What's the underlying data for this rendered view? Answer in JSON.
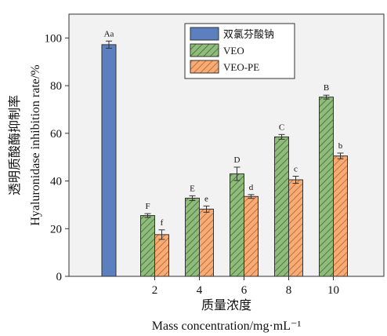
{
  "chart_data": {
    "type": "bar",
    "xlabel_cn": "质量浓度",
    "xlabel_en": "Mass concentration/mg·mL⁻¹",
    "ylabel_cn": "透明质酸酶抑制率",
    "ylabel_en": "Hyaluronidase inhibition rate/%",
    "ylim": [
      0,
      110
    ],
    "yticks": [
      0,
      20,
      40,
      60,
      80,
      100
    ],
    "categories": [
      "",
      "2",
      "4",
      "6",
      "8",
      "10"
    ],
    "series": [
      {
        "name": "双氯芬酸钠",
        "color": "#5b7fbf",
        "pattern": "solid",
        "values": [
          97.2,
          null,
          null,
          null,
          null,
          null
        ],
        "errors": [
          1.5,
          null,
          null,
          null,
          null,
          null
        ],
        "letters": [
          "Aa",
          null,
          null,
          null,
          null,
          null
        ]
      },
      {
        "name": "VEO",
        "color": "#83b070",
        "pattern": "hatch",
        "values": [
          null,
          25.5,
          32.8,
          43.0,
          58.5,
          75.2
        ],
        "errors": [
          null,
          0.8,
          1.0,
          2.8,
          1.0,
          0.8
        ],
        "letters": [
          null,
          "F",
          "E",
          "D",
          "C",
          "B"
        ]
      },
      {
        "name": "VEO-PE",
        "color": "#f0a26a",
        "pattern": "hatch",
        "values": [
          null,
          17.5,
          28.2,
          33.5,
          40.5,
          50.5
        ],
        "errors": [
          null,
          2.0,
          1.3,
          0.8,
          1.5,
          1.2
        ],
        "letters": [
          null,
          "f",
          "e",
          "d",
          "c",
          "b"
        ]
      }
    ],
    "legend_position": "top-right"
  }
}
